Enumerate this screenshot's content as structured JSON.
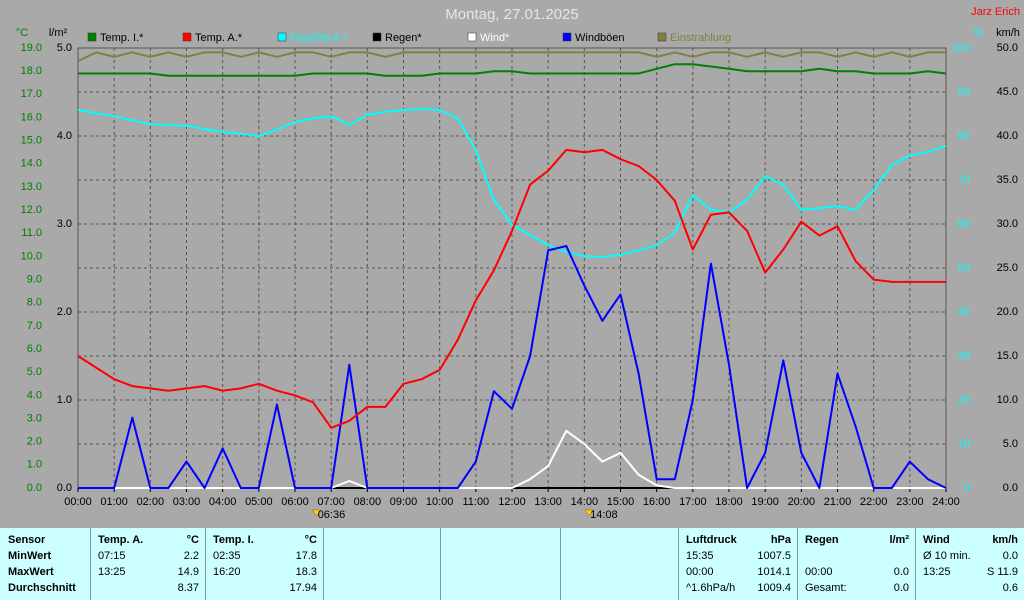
{
  "chart_data": {
    "type": "line",
    "title": "Montag, 27.01.2025",
    "author": "Jarz Erich",
    "ylabel": "°C",
    "y2label": "l/m²",
    "y3label": "%",
    "y4label": "km/h",
    "x": [
      0,
      0.5,
      1,
      1.5,
      2,
      2.5,
      3,
      3.5,
      4,
      4.5,
      5,
      5.5,
      6,
      6.5,
      7,
      7.5,
      8,
      8.5,
      9,
      9.5,
      10,
      10.5,
      11,
      11.5,
      12,
      12.5,
      13,
      13.5,
      14,
      14.5,
      15,
      15.5,
      16,
      16.5,
      17,
      17.5,
      18,
      18.5,
      19,
      19.5,
      20,
      20.5,
      21,
      21.5,
      22,
      22.5,
      23,
      23.5,
      24
    ],
    "xlim": [
      0,
      24
    ],
    "xticks": [
      {
        "value": 0,
        "label": "00:00"
      },
      {
        "value": 1,
        "label": "01:00"
      },
      {
        "value": 2,
        "label": "02:00"
      },
      {
        "value": 3,
        "label": "03:00"
      },
      {
        "value": 4,
        "label": "04:00"
      },
      {
        "value": 5,
        "label": "05:00"
      },
      {
        "value": 6,
        "label": "06:00"
      },
      {
        "value": 7,
        "label": "07:00"
      },
      {
        "value": 8,
        "label": "08:00"
      },
      {
        "value": 9,
        "label": "09:00"
      },
      {
        "value": 10,
        "label": "10:00"
      },
      {
        "value": 11,
        "label": "11:00"
      },
      {
        "value": 12,
        "label": "12:00"
      },
      {
        "value": 13,
        "label": "13:00"
      },
      {
        "value": 14,
        "label": "14:00"
      },
      {
        "value": 15,
        "label": "15:00"
      },
      {
        "value": 16,
        "label": "16:00"
      },
      {
        "value": 17,
        "label": "17:00"
      },
      {
        "value": 18,
        "label": "18:00"
      },
      {
        "value": 19,
        "label": "19:00"
      },
      {
        "value": 20,
        "label": "20:00"
      },
      {
        "value": 21,
        "label": "21:00"
      },
      {
        "value": 22,
        "label": "22:00"
      },
      {
        "value": 23,
        "label": "23:00"
      },
      {
        "value": 24,
        "label": "24:00"
      }
    ],
    "ylim": [
      0,
      19
    ],
    "yticks": [
      {
        "value": 0,
        "label": "0.0"
      },
      {
        "value": 1,
        "label": "1.0"
      },
      {
        "value": 2,
        "label": "2.0"
      },
      {
        "value": 3,
        "label": "3.0"
      },
      {
        "value": 4,
        "label": "4.0"
      },
      {
        "value": 5,
        "label": "5.0"
      },
      {
        "value": 6,
        "label": "6.0"
      },
      {
        "value": 7,
        "label": "7.0"
      },
      {
        "value": 8,
        "label": "8.0"
      },
      {
        "value": 9,
        "label": "9.0"
      },
      {
        "value": 10,
        "label": "10.0"
      },
      {
        "value": 11,
        "label": "11.0"
      },
      {
        "value": 12,
        "label": "12.0"
      },
      {
        "value": 13,
        "label": "13.0"
      },
      {
        "value": 14,
        "label": "14.0"
      },
      {
        "value": 15,
        "label": "15.0"
      },
      {
        "value": 16,
        "label": "16.0"
      },
      {
        "value": 17,
        "label": "17.0"
      },
      {
        "value": 18,
        "label": "18.0"
      },
      {
        "value": 19,
        "label": "19.0"
      }
    ],
    "y2lim": [
      0,
      5
    ],
    "y2ticks": [
      {
        "value": 0,
        "label": "0.0"
      },
      {
        "value": 1,
        "label": "1.0"
      },
      {
        "value": 2,
        "label": "2.0"
      },
      {
        "value": 3,
        "label": "3.0"
      },
      {
        "value": 4,
        "label": "4.0"
      },
      {
        "value": 5,
        "label": "5.0"
      }
    ],
    "y3lim": [
      0,
      100
    ],
    "y3ticks": [
      0,
      10,
      20,
      30,
      40,
      50,
      60,
      70,
      80,
      90,
      100
    ],
    "y4lim": [
      0,
      50
    ],
    "y4ticks": [
      {
        "value": 0,
        "label": "0.0"
      },
      {
        "value": 5,
        "label": "5.0"
      },
      {
        "value": 10,
        "label": "10.0"
      },
      {
        "value": 15,
        "label": "15.0"
      },
      {
        "value": 20,
        "label": "20.0"
      },
      {
        "value": 25,
        "label": "25.0"
      },
      {
        "value": 30,
        "label": "30.0"
      },
      {
        "value": 35,
        "label": "35.0"
      },
      {
        "value": 40,
        "label": "40.0"
      },
      {
        "value": 45,
        "label": "45.0"
      },
      {
        "value": 50,
        "label": "50.0"
      }
    ],
    "grid": true,
    "series": [
      {
        "name": "Temp. I.*",
        "color": "#008000",
        "axis": "y",
        "values": [
          17.9,
          17.9,
          17.9,
          17.9,
          17.9,
          17.8,
          17.8,
          17.8,
          17.8,
          17.8,
          17.8,
          17.8,
          17.8,
          17.9,
          17.9,
          17.9,
          17.9,
          17.8,
          17.8,
          17.8,
          17.9,
          17.9,
          17.9,
          18.0,
          18.0,
          17.9,
          17.9,
          17.9,
          17.9,
          17.9,
          17.9,
          17.9,
          18.1,
          18.3,
          18.3,
          18.2,
          18.1,
          18.0,
          18.0,
          18.0,
          18.0,
          18.1,
          18.0,
          18.0,
          17.9,
          17.9,
          17.9,
          18.0,
          17.9
        ]
      },
      {
        "name": "Temp. A.*",
        "color": "#ff0000",
        "axis": "y",
        "values": [
          5.7,
          5.2,
          4.7,
          4.4,
          4.3,
          4.2,
          4.3,
          4.4,
          4.2,
          4.3,
          4.5,
          4.2,
          4.0,
          3.7,
          2.6,
          2.9,
          3.5,
          3.5,
          4.5,
          4.7,
          5.1,
          6.4,
          8.1,
          9.4,
          11.1,
          13.1,
          13.7,
          14.6,
          14.5,
          14.6,
          14.2,
          13.9,
          13.3,
          12.4,
          10.3,
          11.8,
          11.9,
          11.1,
          9.3,
          10.3,
          11.5,
          10.9,
          11.3,
          9.8,
          9.0,
          8.9,
          8.9,
          8.9,
          8.9
        ]
      },
      {
        "name": "Feuchte A.*",
        "color": "#00ffff",
        "axis": "y3",
        "values": [
          85.9,
          85.2,
          84.5,
          83.6,
          82.7,
          82.5,
          82.3,
          81.6,
          80.9,
          80.5,
          80,
          81.5,
          83.2,
          84,
          84.5,
          82.5,
          84.8,
          85.5,
          85.9,
          86.2,
          85.9,
          84,
          76.8,
          65.5,
          59.8,
          57.5,
          55.2,
          53.6,
          52.7,
          52.5,
          53,
          54,
          55.2,
          58,
          66.6,
          63.2,
          62.7,
          65.5,
          70.9,
          68.9,
          63.2,
          63.6,
          64.1,
          63.2,
          67.7,
          73.4,
          75.5,
          76.4,
          77.7
        ]
      },
      {
        "name": "Regen*",
        "color": "#000000",
        "axis": "y2",
        "values": [
          0,
          0,
          0,
          0,
          0,
          0,
          0,
          0,
          0,
          0,
          0,
          0,
          0,
          0,
          0,
          0,
          0,
          0,
          0,
          0,
          0,
          0,
          0,
          0,
          0,
          0,
          0,
          0,
          0,
          0,
          0,
          0,
          0,
          0,
          0,
          0,
          0,
          0,
          0,
          0,
          0,
          0,
          0,
          0,
          0,
          0,
          0,
          0,
          0
        ]
      },
      {
        "name": "Wind*",
        "color": "#ffffff",
        "axis": "y4",
        "values": [
          0,
          0,
          0,
          0,
          0,
          0,
          0,
          0,
          0,
          0,
          0,
          0,
          0,
          0,
          0,
          0.8,
          0,
          0,
          0,
          0,
          0,
          0,
          0,
          0,
          0,
          1,
          2.5,
          6.5,
          5,
          3,
          4,
          1.5,
          0.3,
          0,
          0,
          0,
          0,
          0,
          0,
          0,
          0,
          0,
          0,
          0,
          0,
          0,
          0,
          0,
          0
        ]
      },
      {
        "name": "Windböen",
        "color": "#0000ff",
        "axis": "y4",
        "values": [
          0,
          0,
          0,
          8,
          0,
          0,
          3,
          0,
          4.5,
          0,
          0,
          9.5,
          0,
          0,
          0,
          14,
          0,
          0,
          0,
          0,
          0,
          0,
          3,
          11,
          9,
          15,
          27,
          27.5,
          23,
          19,
          22,
          13,
          1,
          1,
          10,
          25.5,
          14,
          0,
          4,
          14.5,
          4,
          0,
          13,
          7,
          0,
          0,
          3,
          1,
          0
        ]
      },
      {
        "name": "Einstrahlung",
        "color": "#808040",
        "axis": "y3",
        "values": [
          97,
          99,
          98,
          99,
          98,
          99,
          98,
          99,
          99,
          98,
          99,
          98,
          99,
          99,
          98,
          99,
          99,
          98,
          99,
          99,
          99,
          99,
          99,
          99,
          99,
          99,
          99,
          99,
          99,
          99,
          99,
          99,
          98,
          99,
          98,
          99,
          99,
          98,
          99,
          98,
          99,
          99,
          98,
          99,
          98,
          99,
          98,
          99,
          99
        ]
      }
    ],
    "annotations": [
      {
        "text": "06:36",
        "x": 6.6
      },
      {
        "text": "14:08",
        "x": 14.133
      }
    ]
  },
  "table": {
    "sensor_header": "Sensor",
    "row_labels": [
      "MinWert",
      "MaxWert",
      "Durchschnitt"
    ],
    "groups": [
      {
        "title": "Temp. A.",
        "unit": "°C",
        "rows": [
          {
            "time": "07:15",
            "value": "2.2"
          },
          {
            "time": "13:25",
            "value": "14.9"
          },
          {
            "value": "8.37"
          }
        ]
      },
      {
        "title": "Temp. I.",
        "unit": "°C",
        "rows": [
          {
            "time": "02:35",
            "value": "17.8"
          },
          {
            "time": "16:20",
            "value": "18.3"
          },
          {
            "value": "17.94"
          }
        ]
      },
      {
        "title": "Luftdruck",
        "unit": "hPa",
        "rows": [
          {
            "time": "15:35",
            "value": "1007.5"
          },
          {
            "time": "00:00",
            "value": "1014.1"
          },
          {
            "time": "^1.6hPa/h",
            "value": "1009.4"
          }
        ]
      },
      {
        "title": "Regen",
        "unit": "l/m²",
        "rows": [
          null,
          {
            "time": "00:00",
            "value": "0.0"
          },
          {
            "time": "Gesamt:",
            "value": "0.0"
          }
        ]
      },
      {
        "title": "Wind",
        "unit": "km/h",
        "rows": [
          {
            "time": "Ø 10 min.",
            "value": "0.0"
          },
          {
            "time": "13:25",
            "value": "S 11.9"
          },
          {
            "value": "0.6"
          }
        ]
      }
    ]
  }
}
